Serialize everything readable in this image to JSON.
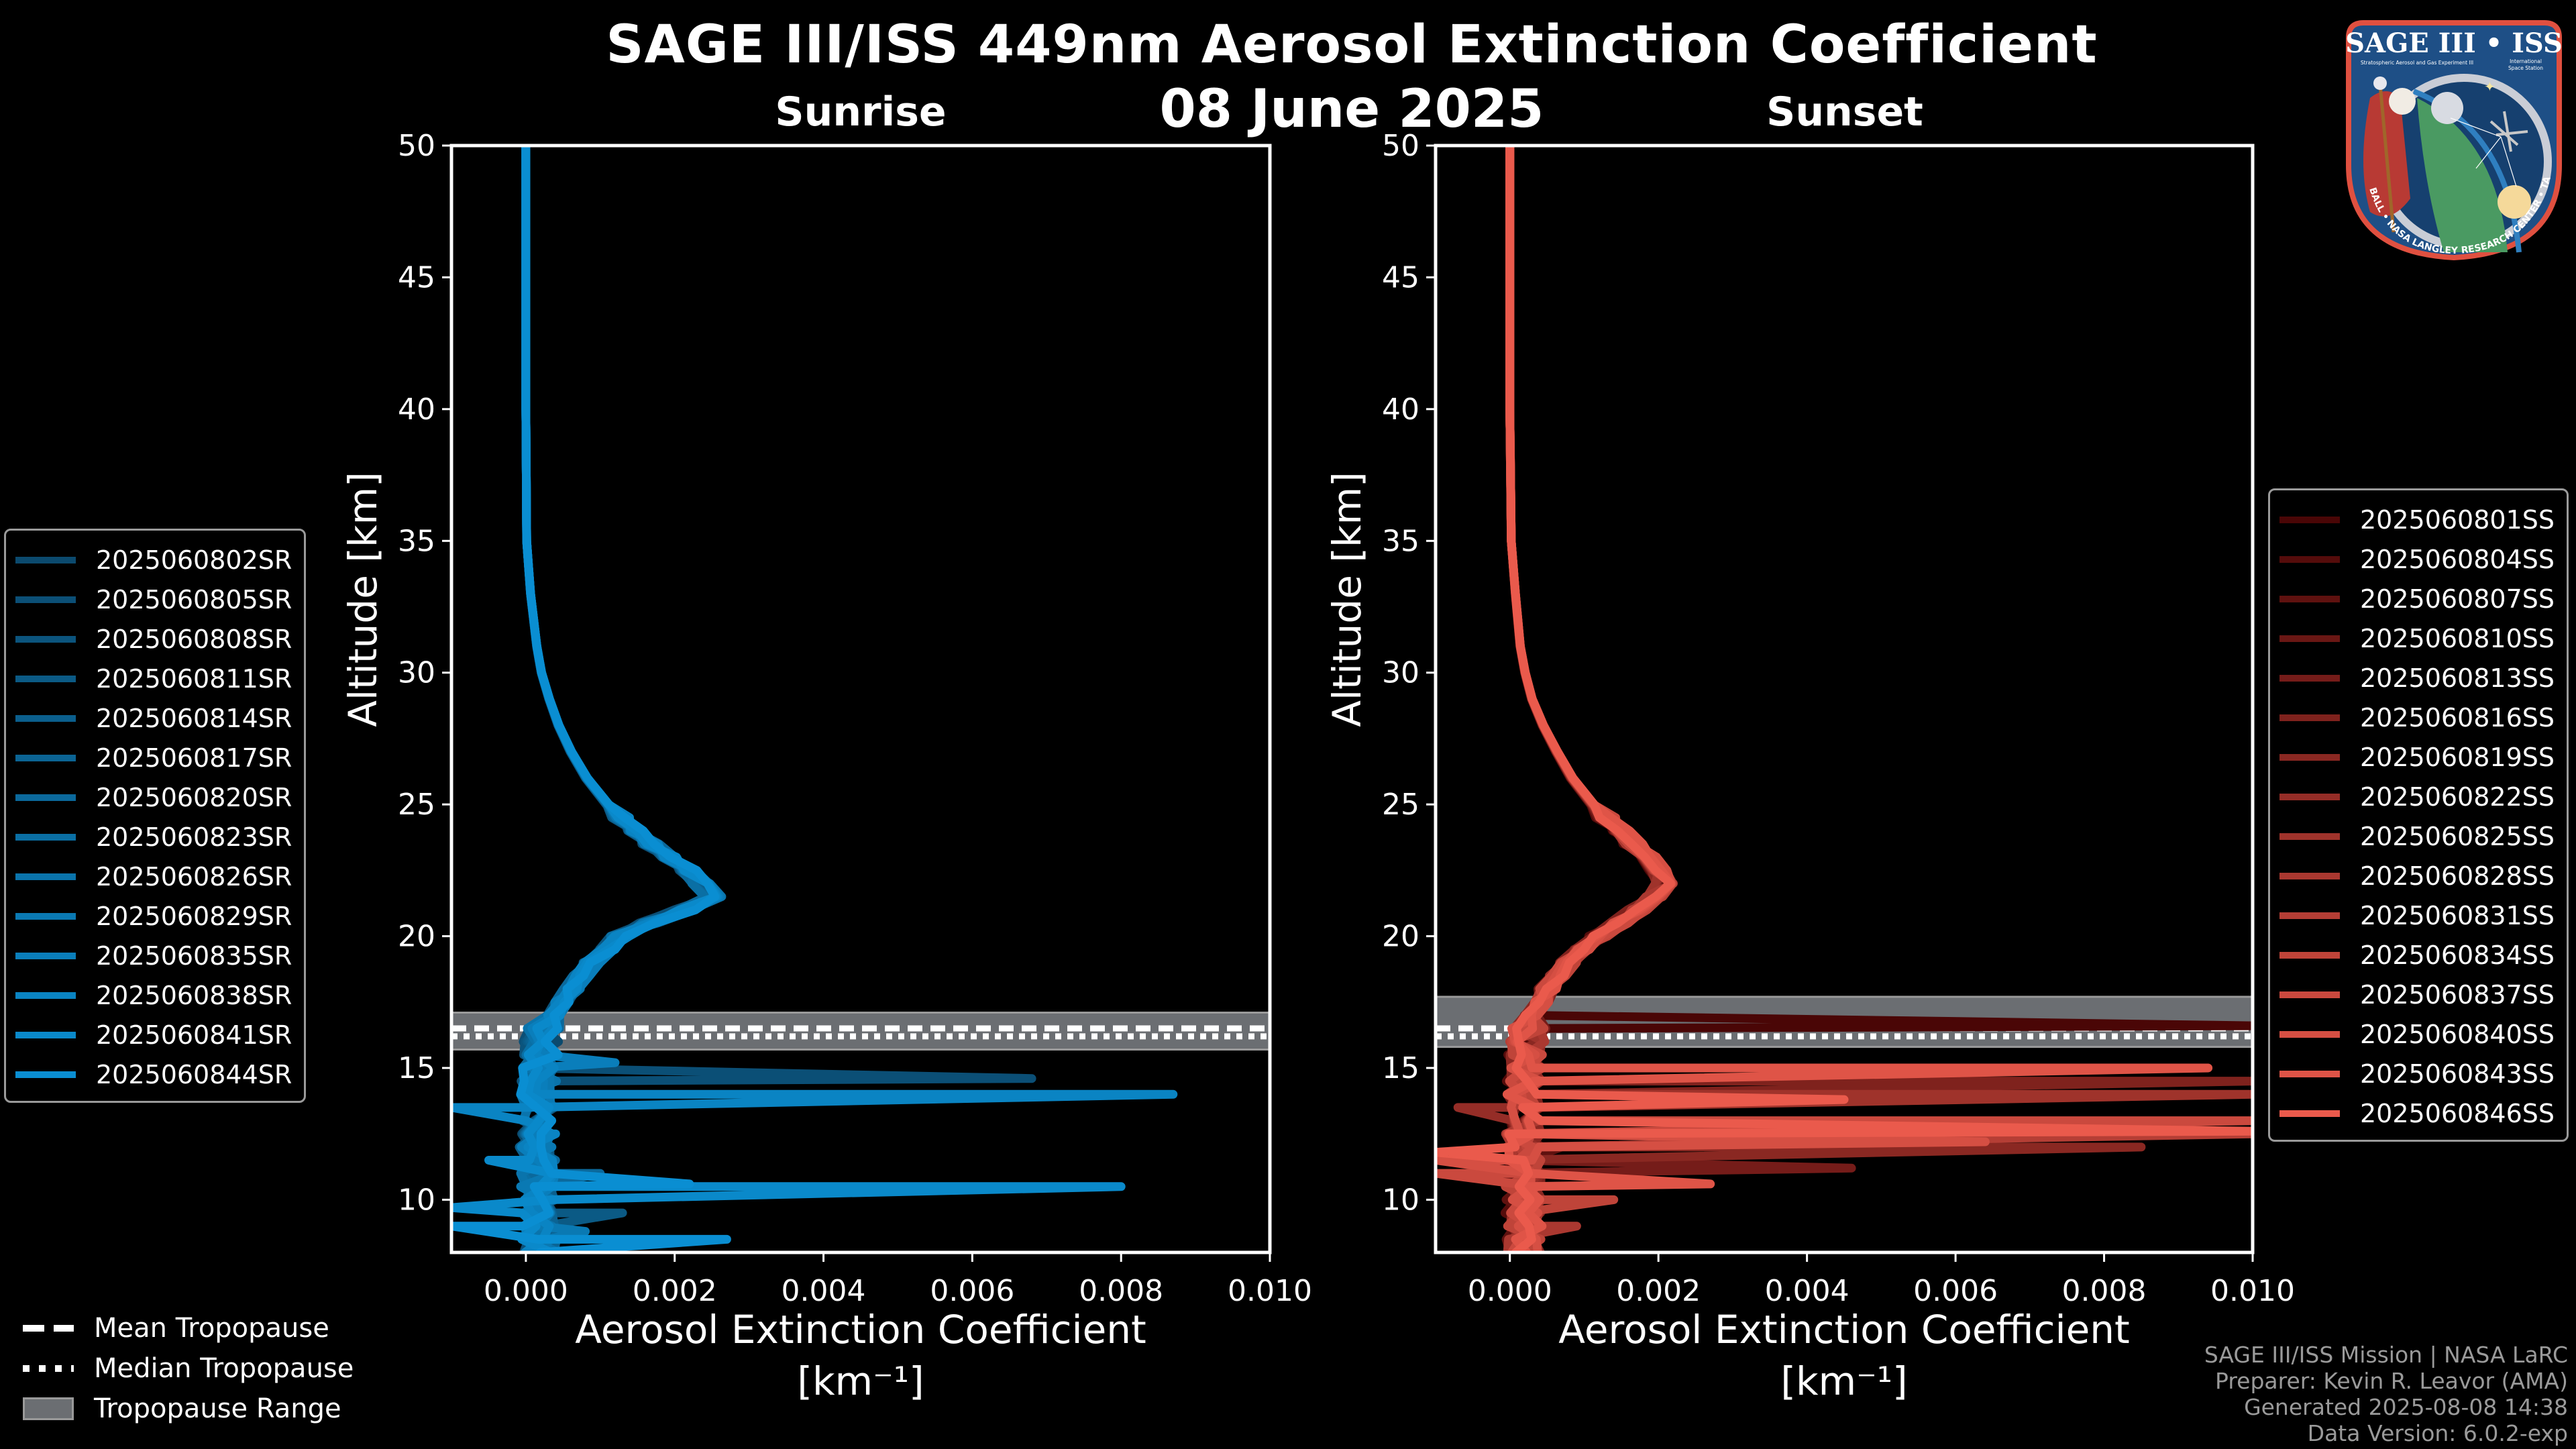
{
  "header": {
    "title": "SAGE III/ISS 449nm Aerosol Extinction Coefficient",
    "date": "08 June 2025"
  },
  "logo": {
    "title": "SAGE III • ISS",
    "subtitle_left": "Stratospheric Aerosol and Gas Experiment III",
    "subtitle_right_1": "International",
    "subtitle_right_2": "Space Station",
    "ring_text": "BALL • NASA LANGLEY RESEARCH CENTER • TAS-I • ESA"
  },
  "tropopause_legend": [
    {
      "label": "Mean Tropopause",
      "style": "dashed"
    },
    {
      "label": "Median Tropopause",
      "style": "dotted"
    },
    {
      "label": "Tropopause Range",
      "style": "band"
    }
  ],
  "credits": [
    "SAGE III/ISS Mission | NASA LaRC",
    "Preparer: Kevin R. Leavor (AMA)",
    "Generated 2025-08-08 14:38",
    "Data Version: 6.0.2-exp"
  ],
  "colors": {
    "background": "#000000",
    "tropopause_band": "#6b6e72",
    "sunrise_start": "#0b4a6e",
    "sunrise_end": "#0a8ed2",
    "sunset_start": "#4a0606",
    "sunset_end": "#ea5a4c"
  },
  "chart_data": [
    {
      "type": "line",
      "title": "Sunrise",
      "xlabel": "Aerosol Extinction Coefficient",
      "xlabel_units": "[km⁻¹]",
      "ylabel": "Altitude [km]",
      "xlim": [
        -0.001,
        0.01
      ],
      "ylim": [
        8,
        50
      ],
      "xticks": [
        "0.000",
        "0.002",
        "0.004",
        "0.006",
        "0.008",
        "0.010"
      ],
      "xtick_values": [
        0,
        0.002,
        0.004,
        0.006,
        0.008,
        0.01
      ],
      "yticks": [
        "10",
        "15",
        "20",
        "25",
        "30",
        "35",
        "40",
        "45",
        "50"
      ],
      "ytick_values": [
        10,
        15,
        20,
        25,
        30,
        35,
        40,
        45,
        50
      ],
      "grid": false,
      "legend_position": "left-outside",
      "tropopause": {
        "mean": 16.4,
        "median": 16.3,
        "range": [
          15.7,
          17.1
        ]
      },
      "base_profile": {
        "altitude": [
          50,
          45,
          40,
          35,
          33,
          31,
          30,
          29,
          28,
          27,
          26,
          25,
          24,
          23,
          22,
          21.5,
          21,
          20.5,
          20,
          19,
          18,
          17,
          16.5,
          16,
          15,
          14,
          13,
          12,
          11,
          10,
          9,
          8
        ],
        "extinction": [
          0.0,
          0.0,
          0.0,
          1e-05,
          6e-05,
          0.00014,
          0.0002,
          0.0003,
          0.00042,
          0.00058,
          0.00078,
          0.00105,
          0.0014,
          0.00185,
          0.00225,
          0.0024,
          0.00205,
          0.0016,
          0.0012,
          0.00085,
          0.0006,
          0.00035,
          0.00025,
          0.0002,
          0.00018,
          0.00016,
          0.00015,
          0.00015,
          0.00016,
          0.00017,
          0.00018,
          0.00018
        ]
      },
      "series": [
        {
          "name": "2025060802SR",
          "spikes": []
        },
        {
          "name": "2025060805SR",
          "spikes": [
            [
              14.6,
              0.0068
            ]
          ]
        },
        {
          "name": "2025060808SR",
          "spikes": []
        },
        {
          "name": "2025060811SR",
          "spikes": [
            [
              9.5,
              0.0013
            ]
          ]
        },
        {
          "name": "2025060814SR",
          "spikes": []
        },
        {
          "name": "2025060817SR",
          "spikes": []
        },
        {
          "name": "2025060820SR",
          "spikes": [
            [
              11.0,
              0.001
            ]
          ]
        },
        {
          "name": "2025060823SR",
          "spikes": []
        },
        {
          "name": "2025060826SR",
          "spikes": []
        },
        {
          "name": "2025060829SR",
          "spikes": [
            [
              8.8,
              0.0008
            ]
          ]
        },
        {
          "name": "2025060835SR",
          "spikes": [
            [
              15.2,
              0.0012
            ]
          ]
        },
        {
          "name": "2025060838SR",
          "spikes": [
            [
              14.0,
              0.0087
            ],
            [
              13.5,
              -0.001
            ],
            [
              12.5,
              0.0004
            ]
          ]
        },
        {
          "name": "2025060841SR",
          "spikes": [
            [
              10.5,
              0.008
            ],
            [
              11.5,
              -0.0005
            ],
            [
              9.7,
              -0.001
            ]
          ]
        },
        {
          "name": "2025060844SR",
          "spikes": [
            [
              8.5,
              0.0027
            ],
            [
              10.6,
              0.0022
            ],
            [
              9.0,
              -0.001
            ]
          ]
        }
      ]
    },
    {
      "type": "line",
      "title": "Sunset",
      "xlabel": "Aerosol Extinction Coefficient",
      "xlabel_units": "[km⁻¹]",
      "ylabel": "Altitude [km]",
      "xlim": [
        -0.001,
        0.01
      ],
      "ylim": [
        8,
        50
      ],
      "xticks": [
        "0.000",
        "0.002",
        "0.004",
        "0.006",
        "0.008",
        "0.010"
      ],
      "xtick_values": [
        0,
        0.002,
        0.004,
        0.006,
        0.008,
        0.01
      ],
      "yticks": [
        "10",
        "15",
        "20",
        "25",
        "30",
        "35",
        "40",
        "45",
        "50"
      ],
      "ytick_values": [
        10,
        15,
        20,
        25,
        30,
        35,
        40,
        45,
        50
      ],
      "grid": false,
      "legend_position": "right-outside",
      "tropopause": {
        "mean": 16.4,
        "median": 16.3,
        "range": [
          15.8,
          17.7
        ]
      },
      "base_profile": {
        "altitude": [
          50,
          45,
          40,
          35,
          33,
          31,
          30,
          29,
          28,
          27,
          26,
          25,
          24,
          23,
          22.5,
          22,
          21.5,
          21,
          20,
          19,
          18,
          17,
          16.5,
          16,
          15,
          14,
          13,
          12,
          11,
          10,
          9,
          8
        ],
        "extinction": [
          0.0,
          0.0,
          0.0,
          2e-05,
          8e-05,
          0.00015,
          0.00022,
          0.00032,
          0.00048,
          0.00068,
          0.0009,
          0.0012,
          0.0016,
          0.002,
          0.0022,
          0.00225,
          0.0021,
          0.00185,
          0.0013,
          0.00085,
          0.00055,
          0.00035,
          0.00028,
          0.00025,
          0.00022,
          0.0002,
          0.0002,
          0.0002,
          0.0002,
          0.0002,
          0.0002,
          0.0002
        ]
      },
      "series": [
        {
          "name": "2025060801SS",
          "spikes": [
            [
              16.6,
              0.01
            ]
          ]
        },
        {
          "name": "2025060804SS",
          "spikes": [
            [
              8.6,
              0.0002
            ]
          ]
        },
        {
          "name": "2025060807SS",
          "spikes": [
            [
              12.0,
              0.0007
            ]
          ]
        },
        {
          "name": "2025060810SS",
          "spikes": []
        },
        {
          "name": "2025060813SS",
          "spikes": [
            [
              11.2,
              0.0046
            ]
          ]
        },
        {
          "name": "2025060816SS",
          "spikes": [
            [
              14.5,
              0.01
            ]
          ]
        },
        {
          "name": "2025060819SS",
          "spikes": [
            [
              12.0,
              0.0085
            ]
          ]
        },
        {
          "name": "2025060822SS",
          "spikes": [
            [
              13.5,
              -0.0007
            ]
          ]
        },
        {
          "name": "2025060825SS",
          "spikes": [
            [
              14.0,
              0.01
            ]
          ]
        },
        {
          "name": "2025060828SS",
          "spikes": [
            [
              9.0,
              0.0009
            ]
          ]
        },
        {
          "name": "2025060831SS",
          "spikes": [
            [
              12.5,
              0.01
            ]
          ]
        },
        {
          "name": "2025060834SS",
          "spikes": [
            [
              10.0,
              0.0014
            ]
          ]
        },
        {
          "name": "2025060837SS",
          "spikes": [
            [
              13.0,
              0.01
            ],
            [
              11.0,
              -0.001
            ]
          ]
        },
        {
          "name": "2025060840SS",
          "spikes": [
            [
              12.2,
              0.0064
            ],
            [
              11.5,
              -0.001
            ]
          ]
        },
        {
          "name": "2025060843SS",
          "spikes": [
            [
              15.0,
              0.0094
            ],
            [
              10.6,
              0.0027
            ]
          ]
        },
        {
          "name": "2025060846SS",
          "spikes": [
            [
              13.8,
              0.0045
            ],
            [
              12.6,
              0.01
            ],
            [
              11.8,
              -0.001
            ]
          ]
        }
      ]
    }
  ]
}
